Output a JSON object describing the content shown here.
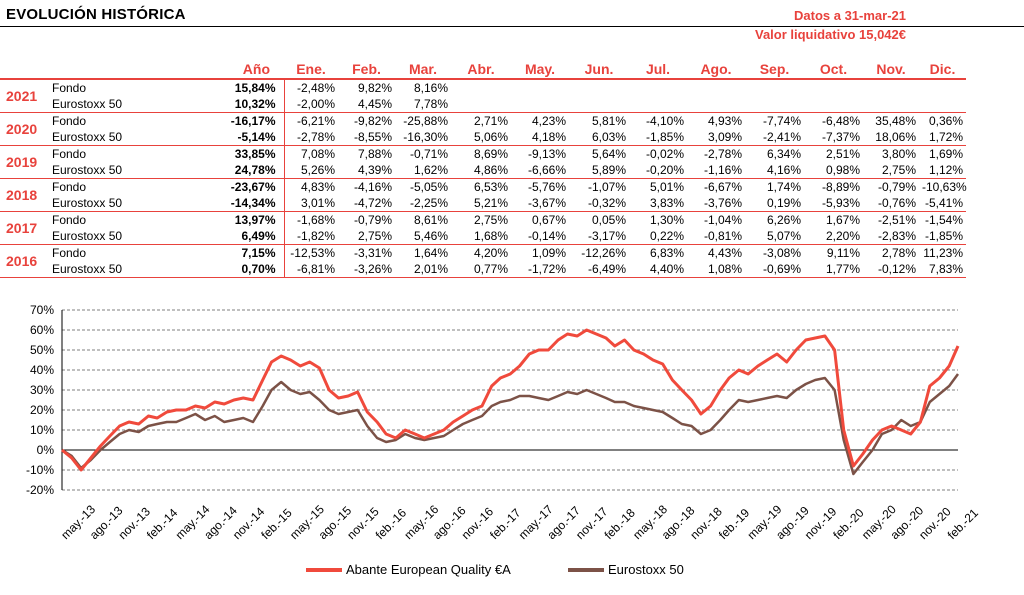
{
  "header": {
    "title": "EVOLUCIÓN HISTÓRICA",
    "date_line": "Datos a 31-mar-21",
    "nav_line": "Valor liquidativo 15,042€"
  },
  "table": {
    "headers": [
      "Año",
      "Ene.",
      "Feb.",
      "Mar.",
      "Abr.",
      "May.",
      "Jun.",
      "Jul.",
      "Ago.",
      "Sep.",
      "Oct.",
      "Nov.",
      "Dic."
    ],
    "years": [
      {
        "year": "2021",
        "rows": [
          {
            "label": "Fondo",
            "ano": "15,84%",
            "months": [
              "-2,48%",
              "9,82%",
              "8,16%",
              "",
              "",
              "",
              "",
              "",
              "",
              "",
              "",
              ""
            ]
          },
          {
            "label": "Eurostoxx 50",
            "ano": "10,32%",
            "months": [
              "-2,00%",
              "4,45%",
              "7,78%",
              "",
              "",
              "",
              "",
              "",
              "",
              "",
              "",
              ""
            ]
          }
        ]
      },
      {
        "year": "2020",
        "rows": [
          {
            "label": "Fondo",
            "ano": "-16,17%",
            "months": [
              "-6,21%",
              "-9,82%",
              "-25,88%",
              "2,71%",
              "4,23%",
              "5,81%",
              "-4,10%",
              "4,93%",
              "-7,74%",
              "-6,48%",
              "35,48%",
              "0,36%"
            ]
          },
          {
            "label": "Eurostoxx 50",
            "ano": "-5,14%",
            "months": [
              "-2,78%",
              "-8,55%",
              "-16,30%",
              "5,06%",
              "4,18%",
              "6,03%",
              "-1,85%",
              "3,09%",
              "-2,41%",
              "-7,37%",
              "18,06%",
              "1,72%"
            ]
          }
        ]
      },
      {
        "year": "2019",
        "rows": [
          {
            "label": "Fondo",
            "ano": "33,85%",
            "months": [
              "7,08%",
              "7,88%",
              "-0,71%",
              "8,69%",
              "-9,13%",
              "5,64%",
              "-0,02%",
              "-2,78%",
              "6,34%",
              "2,51%",
              "3,80%",
              "1,69%"
            ]
          },
          {
            "label": "Eurostoxx 50",
            "ano": "24,78%",
            "months": [
              "5,26%",
              "4,39%",
              "1,62%",
              "4,86%",
              "-6,66%",
              "5,89%",
              "-0,20%",
              "-1,16%",
              "4,16%",
              "0,98%",
              "2,75%",
              "1,12%"
            ]
          }
        ]
      },
      {
        "year": "2018",
        "rows": [
          {
            "label": "Fondo",
            "ano": "-23,67%",
            "months": [
              "4,83%",
              "-4,16%",
              "-5,05%",
              "6,53%",
              "-5,76%",
              "-1,07%",
              "5,01%",
              "-6,67%",
              "1,74%",
              "-8,89%",
              "-0,79%",
              "-10,63%"
            ]
          },
          {
            "label": "Eurostoxx 50",
            "ano": "-14,34%",
            "months": [
              "3,01%",
              "-4,72%",
              "-2,25%",
              "5,21%",
              "-3,67%",
              "-0,32%",
              "3,83%",
              "-3,76%",
              "0,19%",
              "-5,93%",
              "-0,76%",
              "-5,41%"
            ]
          }
        ]
      },
      {
        "year": "2017",
        "rows": [
          {
            "label": "Fondo",
            "ano": "13,97%",
            "months": [
              "-1,68%",
              "-0,79%",
              "8,61%",
              "2,75%",
              "0,67%",
              "0,05%",
              "1,30%",
              "-1,04%",
              "6,26%",
              "1,67%",
              "-2,51%",
              "-1,54%"
            ]
          },
          {
            "label": "Eurostoxx 50",
            "ano": "6,49%",
            "months": [
              "-1,82%",
              "2,75%",
              "5,46%",
              "1,68%",
              "-0,14%",
              "-3,17%",
              "0,22%",
              "-0,81%",
              "5,07%",
              "2,20%",
              "-2,83%",
              "-1,85%"
            ]
          }
        ]
      },
      {
        "year": "2016",
        "rows": [
          {
            "label": "Fondo",
            "ano": "7,15%",
            "months": [
              "-12,53%",
              "-3,31%",
              "1,64%",
              "4,20%",
              "1,09%",
              "-12,26%",
              "6,83%",
              "4,43%",
              "-3,08%",
              "9,11%",
              "2,78%",
              "11,23%"
            ]
          },
          {
            "label": "Eurostoxx 50",
            "ano": "0,70%",
            "months": [
              "-6,81%",
              "-3,26%",
              "2,01%",
              "0,77%",
              "-1,72%",
              "-6,49%",
              "4,40%",
              "1,08%",
              "-0,69%",
              "1,77%",
              "-0,12%",
              "7,83%"
            ]
          }
        ]
      }
    ]
  },
  "chart_data": {
    "type": "line",
    "y_tick_labels": [
      "70%",
      "60%",
      "50%",
      "40%",
      "30%",
      "20%",
      "10%",
      "0%",
      "-10%",
      "-20%"
    ],
    "ylim": [
      -20,
      70
    ],
    "x_tick_labels": [
      "may.-13",
      "ago.-13",
      "nov.-13",
      "feb.-14",
      "may.-14",
      "ago.-14",
      "nov.-14",
      "feb.-15",
      "may.-15",
      "ago.-15",
      "nov.-15",
      "feb.-16",
      "may.-16",
      "ago.-16",
      "nov.-16",
      "feb.-17",
      "may.-17",
      "ago.-17",
      "nov.-17",
      "feb.-18",
      "may.-18",
      "ago.-18",
      "nov.-18",
      "feb.-19",
      "may.-19",
      "ago.-19",
      "nov.-19",
      "feb.-20",
      "may.-20",
      "ago.-20",
      "nov.-20",
      "feb.-21"
    ],
    "x": [
      "2013-05-01",
      "2013-06-01",
      "2013-07-01",
      "2013-08-01",
      "2013-09-01",
      "2013-10-01",
      "2013-11-01",
      "2013-12-01",
      "2014-01-01",
      "2014-02-01",
      "2014-03-01",
      "2014-04-01",
      "2014-05-01",
      "2014-06-01",
      "2014-07-01",
      "2014-08-01",
      "2014-09-01",
      "2014-10-01",
      "2014-11-01",
      "2014-12-01",
      "2015-01-01",
      "2015-02-01",
      "2015-03-01",
      "2015-04-01",
      "2015-05-01",
      "2015-06-01",
      "2015-07-01",
      "2015-08-01",
      "2015-09-01",
      "2015-10-01",
      "2015-11-01",
      "2015-12-01",
      "2016-01-01",
      "2016-02-01",
      "2016-03-01",
      "2016-04-01",
      "2016-05-01",
      "2016-06-01",
      "2016-07-01",
      "2016-08-01",
      "2016-09-01",
      "2016-10-01",
      "2016-11-01",
      "2016-12-01",
      "2017-01-01",
      "2017-02-01",
      "2017-03-01",
      "2017-04-01",
      "2017-05-01",
      "2017-06-01",
      "2017-07-01",
      "2017-08-01",
      "2017-09-01",
      "2017-10-01",
      "2017-11-01",
      "2017-12-01",
      "2018-01-01",
      "2018-02-01",
      "2018-03-01",
      "2018-04-01",
      "2018-05-01",
      "2018-06-01",
      "2018-07-01",
      "2018-08-01",
      "2018-09-01",
      "2018-10-01",
      "2018-11-01",
      "2018-12-01",
      "2019-01-01",
      "2019-02-01",
      "2019-03-01",
      "2019-04-01",
      "2019-05-01",
      "2019-06-01",
      "2019-07-01",
      "2019-08-01",
      "2019-09-01",
      "2019-10-01",
      "2019-11-01",
      "2019-12-01",
      "2020-01-01",
      "2020-02-01",
      "2020-03-01",
      "2020-04-01",
      "2020-05-01",
      "2020-06-01",
      "2020-07-01",
      "2020-08-01",
      "2020-09-01",
      "2020-10-01",
      "2020-11-01",
      "2020-12-01",
      "2021-01-01",
      "2021-02-01",
      "2021-03-01"
    ],
    "series": [
      {
        "name": "Abante European Quality €A",
        "color": "#f04a3c",
        "values": [
          0,
          -4,
          -10,
          -4,
          2,
          7,
          12,
          14,
          13,
          17,
          16,
          19,
          20,
          20,
          22,
          21,
          24,
          23,
          25,
          26,
          25,
          35,
          44,
          47,
          45,
          42,
          44,
          41,
          30,
          26,
          27,
          29,
          19,
          14,
          8,
          6,
          10,
          8,
          6,
          8,
          10,
          14,
          17,
          20,
          22,
          32,
          36,
          38,
          42,
          48,
          50,
          50,
          55,
          58,
          57,
          60,
          58,
          56,
          52,
          55,
          50,
          48,
          45,
          43,
          35,
          30,
          25,
          18,
          22,
          30,
          36,
          40,
          38,
          42,
          45,
          48,
          44,
          50,
          55,
          56,
          57,
          50,
          10,
          -8,
          -2,
          5,
          10,
          12,
          10,
          8,
          14,
          32,
          36,
          42,
          52
        ]
      },
      {
        "name": "Eurostoxx 50",
        "color": "#7c5247",
        "values": [
          0,
          -3,
          -9,
          -5,
          0,
          4,
          8,
          10,
          9,
          12,
          13,
          14,
          14,
          16,
          18,
          15,
          17,
          14,
          15,
          16,
          14,
          22,
          30,
          34,
          30,
          28,
          29,
          25,
          20,
          18,
          19,
          20,
          12,
          6,
          4,
          5,
          8,
          6,
          5,
          6,
          7,
          10,
          13,
          15,
          17,
          22,
          24,
          25,
          27,
          27,
          26,
          25,
          27,
          29,
          28,
          30,
          28,
          26,
          24,
          24,
          22,
          21,
          20,
          19,
          16,
          13,
          12,
          8,
          10,
          15,
          20,
          25,
          24,
          25,
          26,
          27,
          26,
          30,
          33,
          35,
          36,
          30,
          5,
          -12,
          -6,
          0,
          8,
          10,
          15,
          12,
          14,
          24,
          28,
          32,
          38
        ]
      }
    ],
    "legend_placement": "bottom-center",
    "grid": "horizontal dashed"
  }
}
